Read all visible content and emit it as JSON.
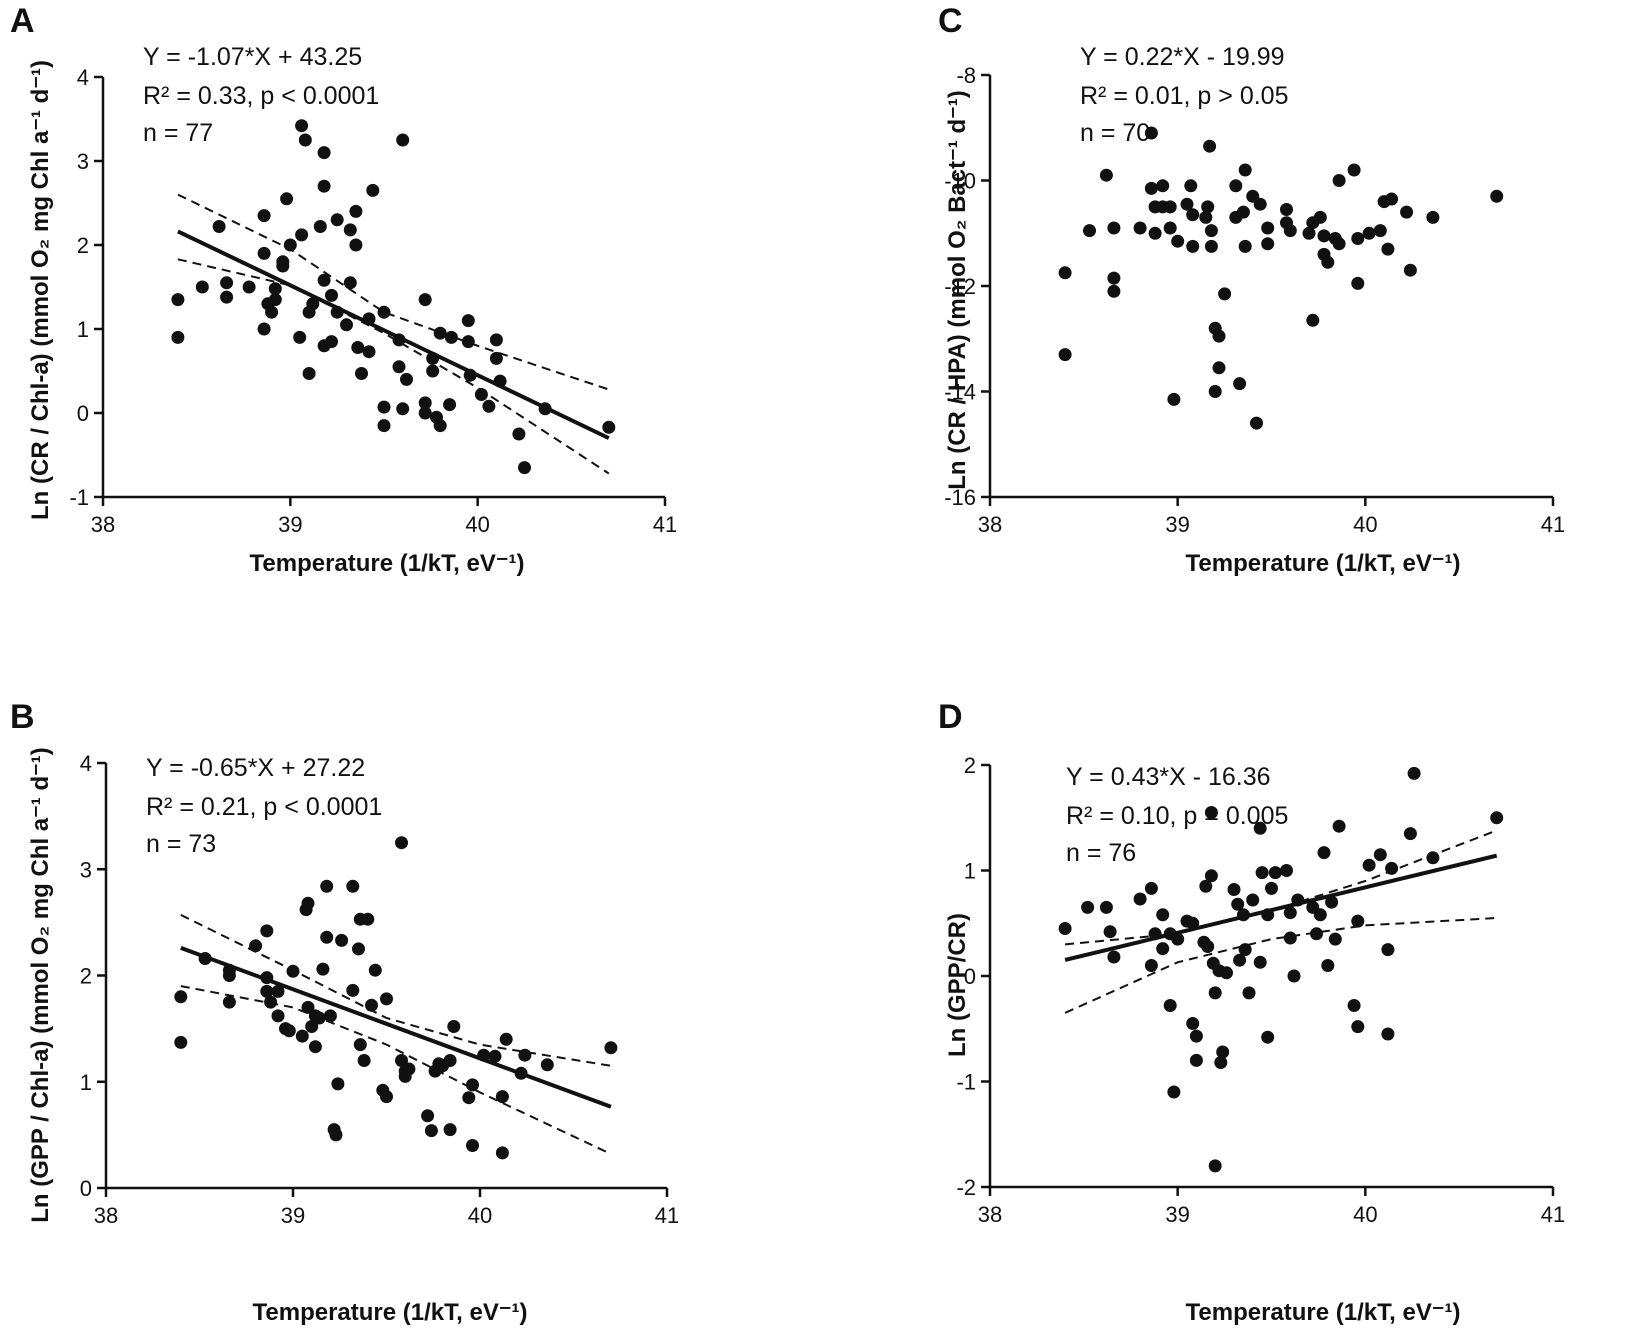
{
  "chart_data": [
    {
      "panel": "A",
      "type": "scatter",
      "xlabel": "Temperature (1/kT, eV⁻¹)",
      "ylabel": "Ln (CR / Chl-a) (mmol O₂ mg Chl a⁻¹ d⁻¹)",
      "xlim": [
        38,
        41
      ],
      "ylim": [
        -1,
        4
      ],
      "xticks": [
        38,
        39,
        40,
        41
      ],
      "yticks": [
        -1,
        0,
        1,
        2,
        3,
        4
      ],
      "annotation": [
        "Y = -1.07*X + 43.25",
        "R² = 0.33, p < 0.0001",
        "n = 77"
      ],
      "fit": {
        "slope": -1.07,
        "intercept": 43.25,
        "x_range": [
          38.4,
          40.7
        ]
      },
      "ci": {
        "upper": [
          [
            38.4,
            2.6
          ],
          [
            39.0,
            1.95
          ],
          [
            39.5,
            1.2
          ],
          [
            40.0,
            0.8
          ],
          [
            40.7,
            0.28
          ]
        ],
        "lower": [
          [
            38.4,
            1.83
          ],
          [
            39.0,
            1.52
          ],
          [
            39.5,
            0.95
          ],
          [
            40.0,
            0.3
          ],
          [
            40.7,
            -0.72
          ]
        ]
      },
      "points": [
        [
          38.4,
          1.35
        ],
        [
          38.4,
          0.9
        ],
        [
          38.53,
          1.5
        ],
        [
          38.62,
          2.22
        ],
        [
          38.66,
          1.55
        ],
        [
          38.66,
          1.38
        ],
        [
          38.78,
          1.5
        ],
        [
          38.86,
          1.9
        ],
        [
          38.86,
          2.35
        ],
        [
          38.86,
          1.0
        ],
        [
          38.88,
          1.3
        ],
        [
          38.9,
          1.2
        ],
        [
          38.92,
          1.48
        ],
        [
          38.92,
          1.35
        ],
        [
          38.96,
          1.75
        ],
        [
          38.96,
          1.8
        ],
        [
          38.98,
          2.55
        ],
        [
          39.0,
          2.0
        ],
        [
          39.05,
          0.9
        ],
        [
          39.06,
          2.12
        ],
        [
          39.06,
          3.42
        ],
        [
          39.08,
          3.25
        ],
        [
          39.1,
          0.47
        ],
        [
          39.1,
          1.2
        ],
        [
          39.12,
          1.3
        ],
        [
          39.16,
          2.22
        ],
        [
          39.18,
          3.1
        ],
        [
          39.18,
          2.7
        ],
        [
          39.18,
          1.58
        ],
        [
          39.18,
          0.8
        ],
        [
          39.22,
          1.4
        ],
        [
          39.22,
          0.85
        ],
        [
          39.25,
          2.3
        ],
        [
          39.25,
          1.2
        ],
        [
          39.3,
          1.05
        ],
        [
          39.32,
          1.55
        ],
        [
          39.32,
          2.18
        ],
        [
          39.35,
          2.4
        ],
        [
          39.35,
          2.0
        ],
        [
          39.36,
          0.78
        ],
        [
          39.38,
          0.47
        ],
        [
          39.42,
          1.12
        ],
        [
          39.42,
          0.73
        ],
        [
          39.44,
          2.65
        ],
        [
          39.5,
          1.2
        ],
        [
          39.5,
          0.07
        ],
        [
          39.5,
          -0.15
        ],
        [
          39.58,
          0.87
        ],
        [
          39.58,
          0.55
        ],
        [
          39.6,
          0.05
        ],
        [
          39.6,
          3.25
        ],
        [
          39.62,
          0.4
        ],
        [
          39.72,
          0.0
        ],
        [
          39.72,
          0.12
        ],
        [
          39.72,
          1.35
        ],
        [
          39.76,
          0.5
        ],
        [
          39.76,
          0.65
        ],
        [
          39.78,
          -0.05
        ],
        [
          39.8,
          0.95
        ],
        [
          39.8,
          -0.15
        ],
        [
          39.85,
          0.1
        ],
        [
          39.86,
          0.9
        ],
        [
          39.95,
          1.1
        ],
        [
          39.95,
          0.85
        ],
        [
          39.96,
          0.45
        ],
        [
          40.02,
          0.22
        ],
        [
          40.06,
          0.08
        ],
        [
          40.1,
          0.65
        ],
        [
          40.1,
          0.87
        ],
        [
          40.12,
          0.38
        ],
        [
          40.22,
          -0.25
        ],
        [
          40.25,
          -0.65
        ],
        [
          40.36,
          0.05
        ],
        [
          40.7,
          -0.17
        ]
      ]
    },
    {
      "panel": "B",
      "type": "scatter",
      "xlabel": "Temperature (1/kT, eV⁻¹)",
      "ylabel": "Ln (GPP / Chl-a) (mmol O₂ mg Chl a⁻¹ d⁻¹)",
      "xlim": [
        38,
        41
      ],
      "ylim": [
        0,
        4
      ],
      "xticks": [
        38,
        39,
        40,
        41
      ],
      "yticks": [
        0,
        1,
        2,
        3,
        4
      ],
      "annotation": [
        "Y = -0.65*X + 27.22",
        "R² = 0.21, p < 0.0001",
        "n = 73"
      ],
      "fit": {
        "slope": -0.65,
        "intercept": 27.22,
        "x_range": [
          38.4,
          40.7
        ]
      },
      "ci": {
        "upper": [
          [
            38.4,
            2.57
          ],
          [
            39.0,
            2.05
          ],
          [
            39.5,
            1.6
          ],
          [
            40.0,
            1.35
          ],
          [
            40.7,
            1.15
          ]
        ],
        "lower": [
          [
            38.4,
            1.9
          ],
          [
            39.0,
            1.7
          ],
          [
            39.5,
            1.35
          ],
          [
            40.0,
            0.9
          ],
          [
            40.7,
            0.32
          ]
        ]
      },
      "points": [
        [
          38.4,
          1.8
        ],
        [
          38.4,
          1.37
        ],
        [
          38.53,
          2.16
        ],
        [
          38.66,
          2.05
        ],
        [
          38.66,
          2.0
        ],
        [
          38.66,
          1.75
        ],
        [
          38.8,
          2.28
        ],
        [
          38.86,
          1.98
        ],
        [
          38.86,
          2.42
        ],
        [
          38.86,
          1.85
        ],
        [
          38.88,
          1.75
        ],
        [
          38.92,
          1.85
        ],
        [
          38.92,
          1.62
        ],
        [
          38.96,
          1.5
        ],
        [
          38.98,
          1.48
        ],
        [
          39.0,
          2.04
        ],
        [
          39.05,
          1.43
        ],
        [
          39.07,
          2.62
        ],
        [
          39.08,
          2.68
        ],
        [
          39.08,
          1.7
        ],
        [
          39.1,
          1.52
        ],
        [
          39.12,
          1.62
        ],
        [
          39.12,
          1.33
        ],
        [
          39.14,
          1.6
        ],
        [
          39.16,
          2.06
        ],
        [
          39.18,
          2.84
        ],
        [
          39.18,
          2.36
        ],
        [
          39.2,
          1.62
        ],
        [
          39.22,
          0.55
        ],
        [
          39.23,
          0.5
        ],
        [
          39.24,
          0.98
        ],
        [
          39.26,
          2.33
        ],
        [
          39.32,
          2.84
        ],
        [
          39.32,
          1.86
        ],
        [
          39.35,
          2.25
        ],
        [
          39.36,
          2.53
        ],
        [
          39.36,
          1.35
        ],
        [
          39.38,
          1.2
        ],
        [
          39.4,
          2.53
        ],
        [
          39.42,
          1.72
        ],
        [
          39.44,
          2.05
        ],
        [
          39.48,
          0.92
        ],
        [
          39.5,
          0.86
        ],
        [
          39.5,
          1.78
        ],
        [
          39.58,
          1.2
        ],
        [
          39.58,
          3.25
        ],
        [
          39.6,
          1.05
        ],
        [
          39.6,
          1.1
        ],
        [
          39.62,
          1.12
        ],
        [
          39.72,
          0.68
        ],
        [
          39.74,
          0.54
        ],
        [
          39.76,
          1.1
        ],
        [
          39.78,
          1.17
        ],
        [
          39.8,
          1.15
        ],
        [
          39.84,
          0.55
        ],
        [
          39.84,
          1.2
        ],
        [
          39.86,
          1.52
        ],
        [
          39.94,
          0.85
        ],
        [
          39.96,
          0.97
        ],
        [
          39.96,
          0.4
        ],
        [
          40.02,
          1.25
        ],
        [
          40.08,
          1.24
        ],
        [
          40.12,
          0.33
        ],
        [
          40.12,
          0.86
        ],
        [
          40.14,
          1.4
        ],
        [
          40.22,
          1.08
        ],
        [
          40.24,
          1.25
        ],
        [
          40.36,
          1.16
        ],
        [
          40.7,
          1.32
        ]
      ]
    },
    {
      "panel": "C",
      "type": "scatter",
      "xlabel": "Temperature (1/kT, eV⁻¹)",
      "ylabel": "Ln (CR / HPA) (mmol O₂ Bact⁻¹ d⁻¹)",
      "xlim": [
        38,
        41
      ],
      "ylim": [
        -16,
        -8
      ],
      "xticks": [
        38,
        39,
        40,
        41
      ],
      "yticks": [
        -16,
        -14,
        -12,
        -10,
        -8
      ],
      "annotation": [
        "Y = 0.22*X - 19.99",
        "R² = 0.01, p > 0.05",
        "n = 70"
      ],
      "points": [
        [
          38.4,
          -11.75
        ],
        [
          38.4,
          -13.3
        ],
        [
          38.53,
          -10.95
        ],
        [
          38.62,
          -9.9
        ],
        [
          38.66,
          -10.9
        ],
        [
          38.66,
          -11.85
        ],
        [
          38.66,
          -12.1
        ],
        [
          38.8,
          -10.9
        ],
        [
          38.86,
          -9.1
        ],
        [
          38.86,
          -10.15
        ],
        [
          38.88,
          -10.5
        ],
        [
          38.88,
          -11.0
        ],
        [
          38.92,
          -10.1
        ],
        [
          38.92,
          -10.5
        ],
        [
          38.96,
          -10.5
        ],
        [
          38.96,
          -10.9
        ],
        [
          38.98,
          -14.15
        ],
        [
          39.0,
          -11.15
        ],
        [
          39.05,
          -10.45
        ],
        [
          39.07,
          -10.1
        ],
        [
          39.08,
          -11.25
        ],
        [
          39.08,
          -10.65
        ],
        [
          39.15,
          -10.7
        ],
        [
          39.16,
          -10.5
        ],
        [
          39.17,
          -9.35
        ],
        [
          39.18,
          -10.95
        ],
        [
          39.18,
          -11.25
        ],
        [
          39.2,
          -12.8
        ],
        [
          39.2,
          -14.0
        ],
        [
          39.22,
          -12.95
        ],
        [
          39.22,
          -13.55
        ],
        [
          39.25,
          -12.15
        ],
        [
          39.31,
          -10.7
        ],
        [
          39.31,
          -10.1
        ],
        [
          39.33,
          -13.85
        ],
        [
          39.35,
          -10.6
        ],
        [
          39.36,
          -9.8
        ],
        [
          39.36,
          -11.25
        ],
        [
          39.4,
          -10.3
        ],
        [
          39.42,
          -14.6
        ],
        [
          39.44,
          -10.45
        ],
        [
          39.48,
          -10.9
        ],
        [
          39.48,
          -11.2
        ],
        [
          39.58,
          -10.55
        ],
        [
          39.58,
          -10.8
        ],
        [
          39.6,
          -10.95
        ],
        [
          39.7,
          -11.0
        ],
        [
          39.72,
          -10.8
        ],
        [
          39.72,
          -12.65
        ],
        [
          39.76,
          -10.7
        ],
        [
          39.78,
          -11.05
        ],
        [
          39.78,
          -11.4
        ],
        [
          39.8,
          -11.55
        ],
        [
          39.84,
          -11.1
        ],
        [
          39.86,
          -10.0
        ],
        [
          39.86,
          -11.2
        ],
        [
          39.94,
          -9.8
        ],
        [
          39.96,
          -11.95
        ],
        [
          39.96,
          -11.1
        ],
        [
          40.02,
          -11.0
        ],
        [
          40.08,
          -10.95
        ],
        [
          40.1,
          -10.4
        ],
        [
          40.12,
          -11.3
        ],
        [
          40.14,
          -10.35
        ],
        [
          40.22,
          -10.6
        ],
        [
          40.24,
          -11.7
        ],
        [
          40.36,
          -10.7
        ],
        [
          40.7,
          -10.3
        ]
      ]
    },
    {
      "panel": "D",
      "type": "scatter",
      "xlabel": "Temperature (1/kT, eV⁻¹)",
      "ylabel": "Ln (GPP/CR)",
      "xlim": [
        38,
        41
      ],
      "ylim": [
        -2,
        2
      ],
      "xticks": [
        38,
        39,
        40,
        41
      ],
      "yticks": [
        -2,
        -1,
        0,
        1,
        2
      ],
      "annotation": [
        "Y = 0.43*X - 16.36",
        "R² = 0.10, p = 0.005",
        "n = 76"
      ],
      "fit": {
        "slope": 0.43,
        "intercept": -16.36,
        "x_range": [
          38.4,
          40.7
        ]
      },
      "ci": {
        "upper": [
          [
            38.4,
            0.3
          ],
          [
            39.0,
            0.4
          ],
          [
            39.5,
            0.62
          ],
          [
            40.0,
            0.9
          ],
          [
            40.7,
            1.38
          ]
        ],
        "lower": [
          [
            38.4,
            -0.35
          ],
          [
            39.0,
            0.13
          ],
          [
            39.5,
            0.35
          ],
          [
            40.0,
            0.48
          ],
          [
            40.7,
            0.55
          ]
        ]
      },
      "points": [
        [
          38.4,
          0.45
        ],
        [
          38.52,
          0.65
        ],
        [
          38.62,
          0.65
        ],
        [
          38.64,
          0.42
        ],
        [
          38.66,
          0.18
        ],
        [
          38.8,
          0.73
        ],
        [
          38.86,
          0.83
        ],
        [
          38.86,
          0.1
        ],
        [
          38.88,
          0.4
        ],
        [
          38.92,
          0.58
        ],
        [
          38.92,
          0.26
        ],
        [
          38.96,
          0.4
        ],
        [
          38.96,
          -0.28
        ],
        [
          38.98,
          -1.1
        ],
        [
          39.0,
          0.35
        ],
        [
          39.05,
          0.52
        ],
        [
          39.08,
          0.5
        ],
        [
          39.08,
          -0.45
        ],
        [
          39.1,
          -0.8
        ],
        [
          39.1,
          -0.57
        ],
        [
          39.14,
          0.32
        ],
        [
          39.15,
          0.85
        ],
        [
          39.16,
          0.28
        ],
        [
          39.18,
          1.55
        ],
        [
          39.18,
          0.95
        ],
        [
          39.19,
          0.12
        ],
        [
          39.2,
          -0.16
        ],
        [
          39.2,
          -1.8
        ],
        [
          39.22,
          0.05
        ],
        [
          39.23,
          -0.82
        ],
        [
          39.24,
          -0.72
        ],
        [
          39.26,
          0.03
        ],
        [
          39.3,
          0.82
        ],
        [
          39.32,
          0.68
        ],
        [
          39.33,
          0.15
        ],
        [
          39.35,
          0.58
        ],
        [
          39.36,
          0.25
        ],
        [
          39.38,
          -0.16
        ],
        [
          39.4,
          0.72
        ],
        [
          39.44,
          1.4
        ],
        [
          39.44,
          0.13
        ],
        [
          39.45,
          0.98
        ],
        [
          39.48,
          -0.58
        ],
        [
          39.48,
          0.58
        ],
        [
          39.5,
          0.83
        ],
        [
          39.52,
          0.98
        ],
        [
          39.58,
          1.0
        ],
        [
          39.6,
          0.6
        ],
        [
          39.6,
          0.36
        ],
        [
          39.62,
          0.0
        ],
        [
          39.64,
          0.72
        ],
        [
          39.72,
          0.65
        ],
        [
          39.74,
          0.4
        ],
        [
          39.76,
          0.58
        ],
        [
          39.78,
          1.17
        ],
        [
          39.8,
          0.1
        ],
        [
          39.82,
          0.7
        ],
        [
          39.84,
          0.35
        ],
        [
          39.86,
          1.42
        ],
        [
          39.94,
          -0.28
        ],
        [
          39.96,
          0.52
        ],
        [
          39.96,
          -0.48
        ],
        [
          40.02,
          1.05
        ],
        [
          40.08,
          1.15
        ],
        [
          40.12,
          0.25
        ],
        [
          40.12,
          -0.55
        ],
        [
          40.14,
          1.02
        ],
        [
          40.24,
          1.35
        ],
        [
          40.26,
          1.92
        ],
        [
          40.36,
          1.12
        ],
        [
          40.7,
          1.5
        ]
      ]
    }
  ]
}
